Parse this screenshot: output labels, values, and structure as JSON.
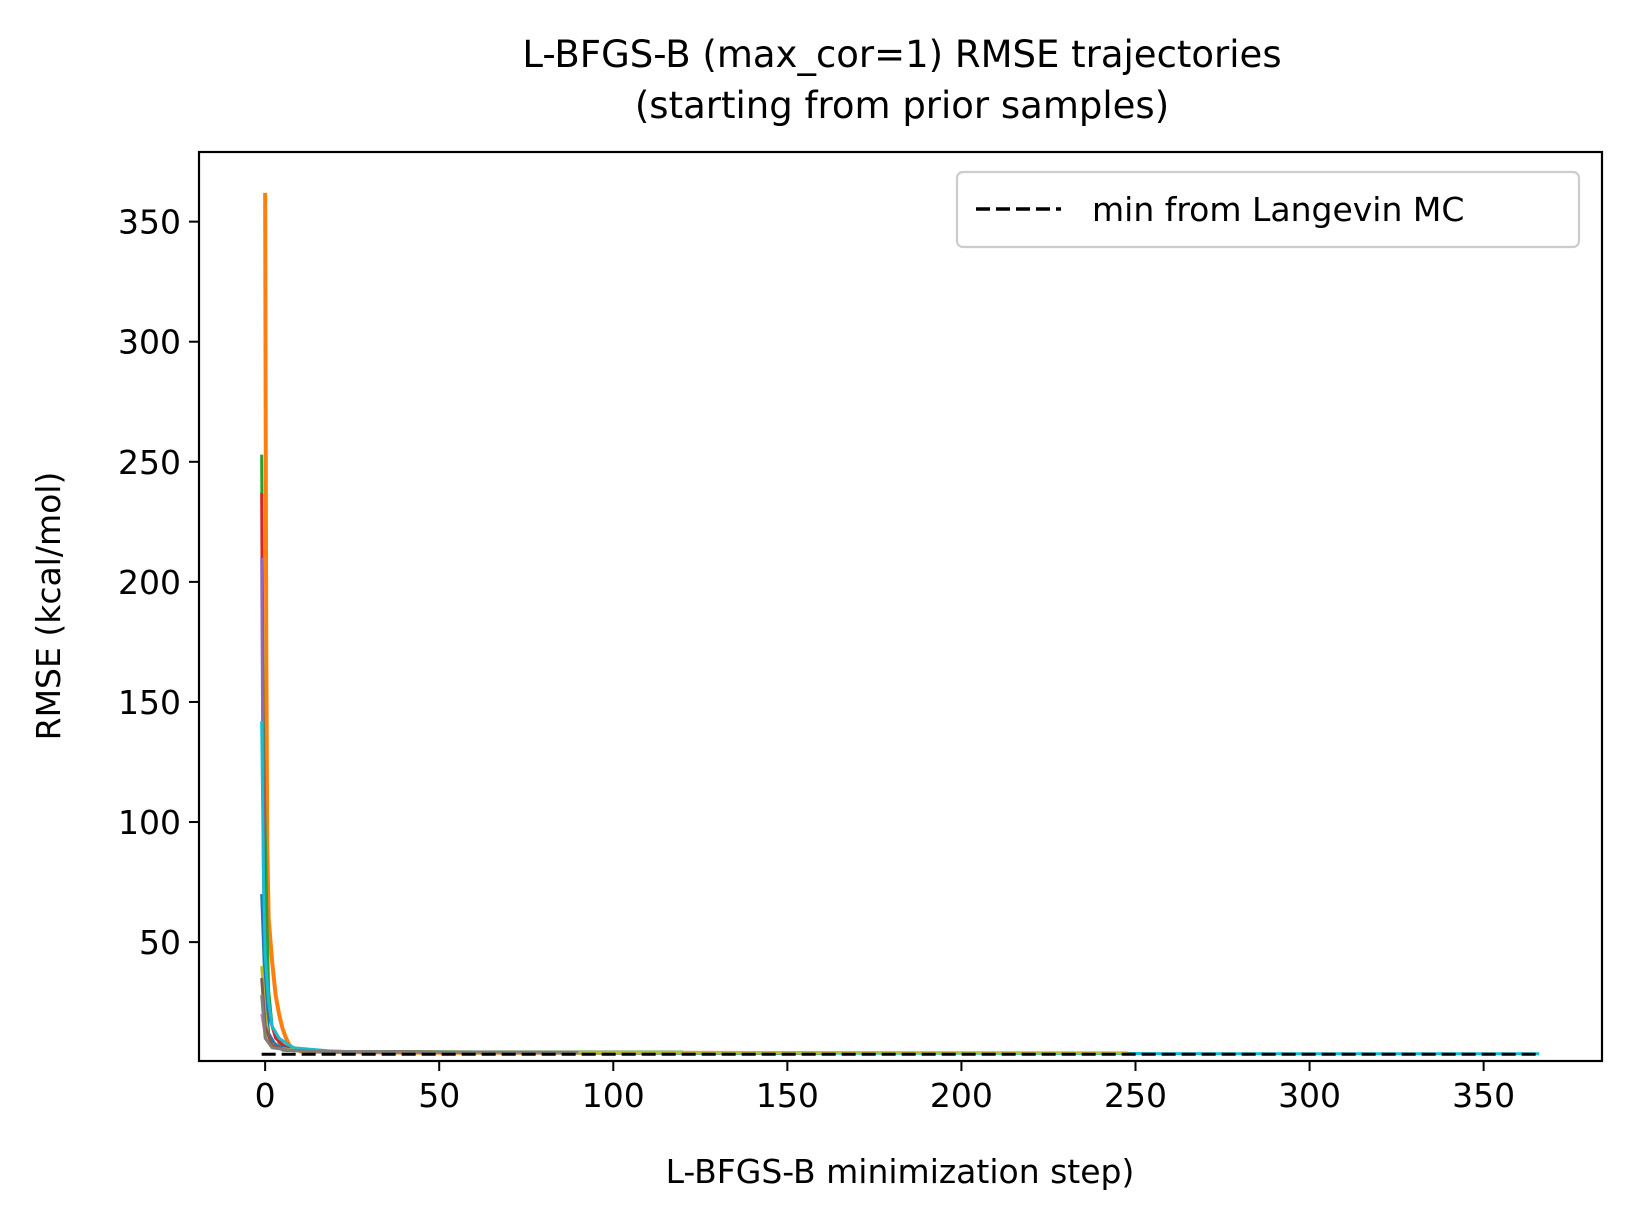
{
  "chart_data": {
    "type": "line",
    "title_line1": "L-BFGS-B (max_cor=1) RMSE trajectories",
    "title_line2": "(starting from prior samples)",
    "xlabel": "L-BFGS-B minimization step)",
    "ylabel": "RMSE (kcal/mol)",
    "xlim": [
      -19,
      384
    ],
    "ylim": [
      0.5,
      379
    ],
    "xticks": [
      0,
      50,
      100,
      150,
      200,
      250,
      300,
      350
    ],
    "yticks": [
      50,
      100,
      150,
      200,
      250,
      300,
      350
    ],
    "grid": false,
    "legend": {
      "placement": "upper right",
      "entries": [
        {
          "label": "min from Langevin MC",
          "style": "dashed",
          "color": "#000000"
        }
      ]
    },
    "series": [
      {
        "color": "#ff7f0e",
        "points": [
          [
            0,
            362
          ],
          [
            0.3,
            180
          ],
          [
            0.6,
            90
          ],
          [
            1,
            60
          ],
          [
            2,
            42
          ],
          [
            3,
            28
          ],
          [
            4,
            20
          ],
          [
            5,
            14
          ],
          [
            6,
            10
          ],
          [
            7,
            7
          ],
          [
            8,
            6
          ],
          [
            9,
            5.5
          ],
          [
            10,
            4.5
          ],
          [
            20,
            4.2
          ],
          [
            40,
            4.0
          ],
          [
            100,
            3.9
          ],
          [
            160,
            3.8
          ]
        ]
      },
      {
        "color": "#2ca02c",
        "points": [
          [
            -1,
            253
          ],
          [
            -0.6,
            150
          ],
          [
            0,
            97
          ],
          [
            0.5,
            60
          ],
          [
            1,
            30
          ],
          [
            2,
            15
          ],
          [
            4,
            8
          ],
          [
            8,
            5
          ],
          [
            20,
            4.5
          ],
          [
            60,
            4.3
          ],
          [
            120,
            4.2
          ]
        ]
      },
      {
        "color": "#d62728",
        "points": [
          [
            -1,
            237
          ],
          [
            -0.6,
            120
          ],
          [
            0,
            40
          ],
          [
            1,
            20
          ],
          [
            3,
            10
          ],
          [
            6,
            6
          ],
          [
            15,
            4.5
          ],
          [
            60,
            4.2
          ]
        ]
      },
      {
        "color": "#9467bd",
        "points": [
          [
            -1,
            210
          ],
          [
            -0.5,
            80
          ],
          [
            0,
            30
          ],
          [
            1,
            10
          ],
          [
            5,
            5
          ],
          [
            20,
            4.3
          ],
          [
            157,
            4.0
          ]
        ]
      },
      {
        "color": "#1f77b4",
        "points": [
          [
            -1,
            70
          ],
          [
            0,
            30
          ],
          [
            1,
            12
          ],
          [
            3,
            7
          ],
          [
            8,
            5
          ],
          [
            30,
            4.2
          ],
          [
            157,
            3.9
          ]
        ]
      },
      {
        "color": "#17becf",
        "points": [
          [
            -1,
            142
          ],
          [
            -0.5,
            80
          ],
          [
            0,
            45
          ],
          [
            1,
            25
          ],
          [
            2,
            15
          ],
          [
            4,
            10
          ],
          [
            8,
            6
          ],
          [
            20,
            4.5
          ],
          [
            60,
            4.0
          ],
          [
            120,
            3.8
          ],
          [
            200,
            3.7
          ],
          [
            250,
            3.6
          ],
          [
            300,
            3.5
          ],
          [
            366,
            3.5
          ]
        ]
      },
      {
        "color": "#e377c2",
        "points": [
          [
            -1,
            20
          ],
          [
            0,
            12
          ],
          [
            1,
            8
          ],
          [
            3,
            6
          ],
          [
            8,
            5
          ],
          [
            30,
            4.2
          ],
          [
            80,
            4.0
          ]
        ]
      },
      {
        "color": "#bcbd22",
        "points": [
          [
            -1,
            40
          ],
          [
            0,
            20
          ],
          [
            1,
            9
          ],
          [
            3,
            6
          ],
          [
            10,
            4.6
          ],
          [
            40,
            4.2
          ],
          [
            248,
            3.9
          ]
        ]
      },
      {
        "color": "#8c564b",
        "points": [
          [
            -1,
            35
          ],
          [
            0,
            15
          ],
          [
            2,
            7
          ],
          [
            6,
            5
          ],
          [
            20,
            4.4
          ],
          [
            60,
            4.1
          ]
        ]
      },
      {
        "color": "#7f7f7f",
        "points": [
          [
            -1,
            28
          ],
          [
            0,
            10
          ],
          [
            2,
            6
          ],
          [
            8,
            4.8
          ],
          [
            30,
            4.3
          ],
          [
            90,
            4.1
          ]
        ]
      }
    ],
    "langevin_min": 3.3
  }
}
